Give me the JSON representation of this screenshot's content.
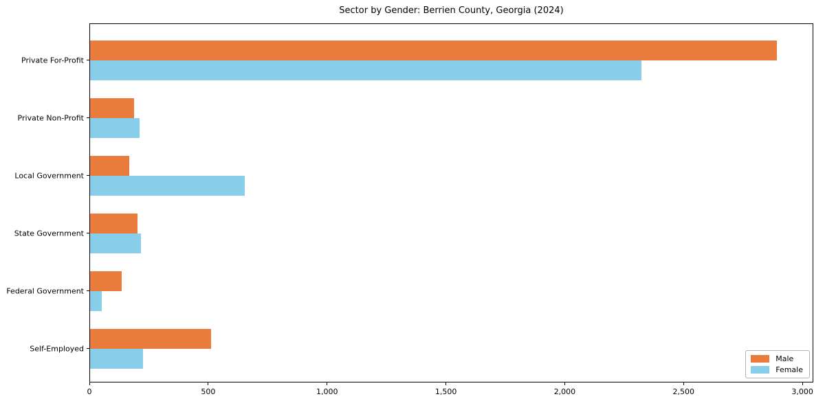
{
  "chart_data": {
    "type": "bar",
    "orientation": "horizontal",
    "title": "Sector by Gender: Berrien County, Georgia (2024)",
    "categories": [
      "Private For-Profit",
      "Private Non-Profit",
      "Local Government",
      "State Government",
      "Federal Government",
      "Self-Employed"
    ],
    "series": [
      {
        "name": "Male",
        "color": "#E97C3C",
        "values": [
          2890,
          184,
          166,
          201,
          134,
          509
        ]
      },
      {
        "name": "Female",
        "color": "#87CEEB",
        "values": [
          2320,
          208,
          650,
          214,
          49,
          223
        ]
      }
    ],
    "xlabel": "",
    "ylabel": "",
    "xlim": [
      0,
      3040
    ],
    "xticks": [
      0,
      500,
      1000,
      1500,
      2000,
      2500,
      3000
    ],
    "xtick_labels": [
      "0",
      "500",
      "1,000",
      "1,500",
      "2,000",
      "2,500",
      "3,000"
    ],
    "grid": false,
    "legend_position": "lower right"
  }
}
